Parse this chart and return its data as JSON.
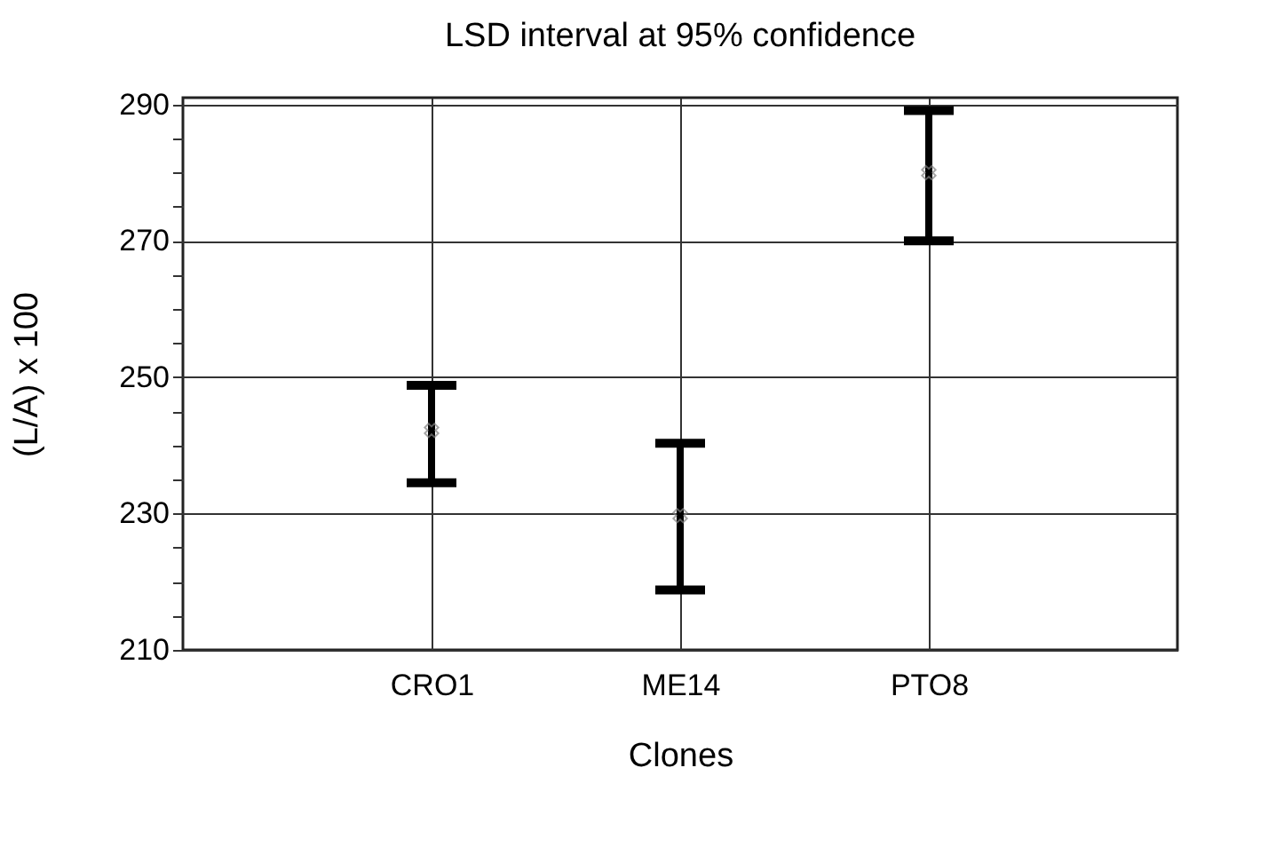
{
  "chart_data": {
    "type": "scatter",
    "title": "LSD interval at 95% confidence",
    "xlabel": "Clones",
    "ylabel": "(L/A) x 100",
    "categories": [
      "CRO1",
      "ME14",
      "PTO8"
    ],
    "series": [
      {
        "color": "#808080",
        "values": [
          242.2,
          229.7,
          280
        ],
        "errors": [
          [
            234.5,
            248.8
          ],
          [
            218.8,
            240.3
          ],
          [
            270,
            289.1
          ]
        ]
      }
    ],
    "marker": "cross",
    "grid": true,
    "ylim": [
      210,
      291
    ],
    "yticks": [
      210,
      {
        "value": 215,
        "label": null
      },
      {
        "value": 220,
        "label": null
      },
      {
        "value": 225,
        "label": null
      },
      230,
      {
        "value": 235,
        "label": null
      },
      {
        "value": 240,
        "label": null
      },
      {
        "value": 245,
        "label": null
      },
      250,
      {
        "value": 255,
        "label": null
      },
      {
        "value": 260,
        "label": null
      },
      {
        "value": 265,
        "label": null
      },
      270,
      {
        "value": 275,
        "label": null
      },
      {
        "value": 280,
        "label": null
      },
      {
        "value": 285,
        "label": null
      },
      290
    ]
  }
}
